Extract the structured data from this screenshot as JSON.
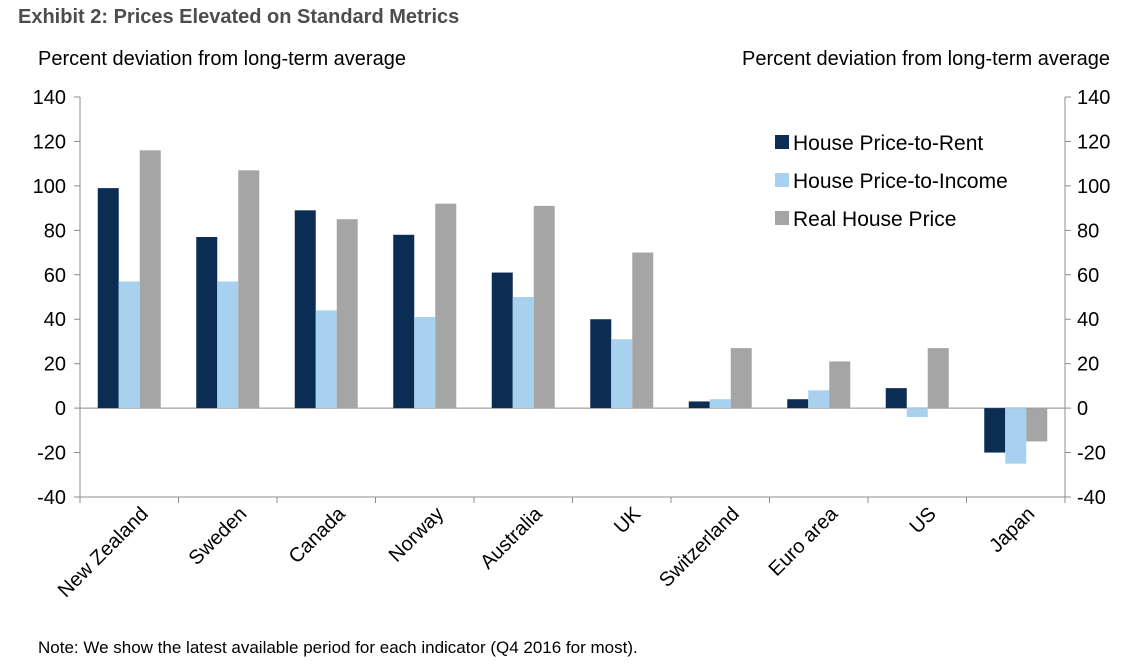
{
  "title": "Exhibit 2: Prices Elevated on Standard Metrics",
  "note": "Note: We show the latest available period for each indicator (Q4 2016 for most).",
  "chart_data": {
    "type": "bar",
    "title": "Exhibit 2: Prices Elevated on Standard Metrics",
    "ylabel_left": "Percent deviation from long-term average",
    "ylabel_right": "Percent deviation from long-term average",
    "ylim": [
      -40,
      140
    ],
    "yticks": [
      140,
      120,
      100,
      80,
      60,
      40,
      20,
      0,
      -20,
      -40
    ],
    "grid": false,
    "legend_position": "top-right",
    "categories": [
      "New Zealand",
      "Sweden",
      "Canada",
      "Norway",
      "Australia",
      "UK",
      "Switzerland",
      "Euro area",
      "US",
      "Japan"
    ],
    "series": [
      {
        "name": "House Price-to-Rent",
        "color": "#0b2d54",
        "values": [
          99,
          77,
          89,
          78,
          61,
          40,
          3,
          4,
          9,
          -20
        ]
      },
      {
        "name": "House Price-to-Income",
        "color": "#a8d1f0",
        "values": [
          57,
          57,
          44,
          41,
          50,
          31,
          4,
          8,
          -4,
          -25
        ]
      },
      {
        "name": "Real House Price",
        "color": "#a5a5a5",
        "values": [
          116,
          107,
          85,
          92,
          91,
          70,
          27,
          21,
          27,
          -15
        ]
      }
    ]
  }
}
